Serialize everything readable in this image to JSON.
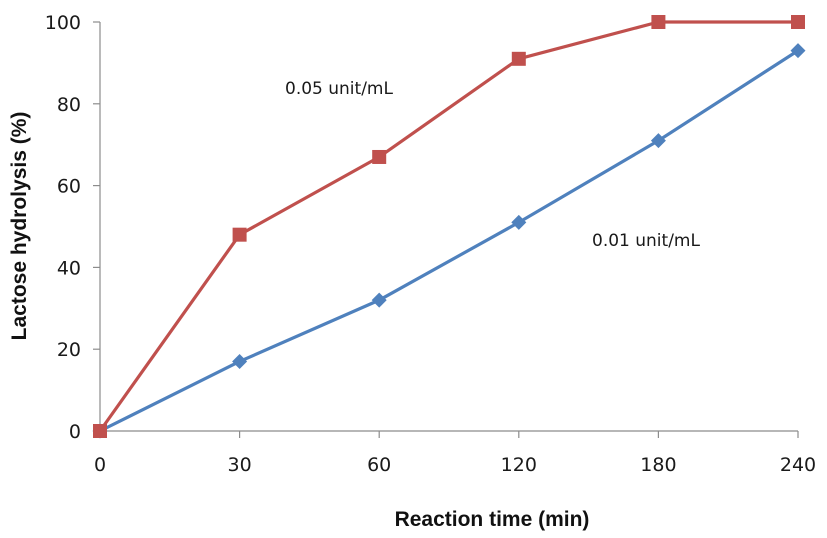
{
  "chart_data": {
    "type": "line",
    "title": "",
    "xlabel": "Reaction time (min)",
    "ylabel": "Lactose hydrolysis (%)",
    "categories": [
      "0",
      "30",
      "60",
      "120",
      "180",
      "240"
    ],
    "ylim": [
      0,
      100
    ],
    "yticks": [
      "0",
      "20",
      "40",
      "60",
      "80",
      "100"
    ],
    "grid": false,
    "legend": "none",
    "series": [
      {
        "name": "0.05 unit/mL",
        "color": "#c0504d",
        "marker": "square",
        "values": [
          0,
          48,
          67,
          91,
          100,
          100
        ]
      },
      {
        "name": "0.01 unit/mL",
        "color": "#4f81bd",
        "marker": "diamond",
        "values": [
          0,
          17,
          32,
          51,
          71,
          93
        ]
      }
    ],
    "annotations": [
      {
        "text": "0.05 unit/mL",
        "series": 0
      },
      {
        "text": "0.01 unit/mL",
        "series": 1
      }
    ]
  }
}
